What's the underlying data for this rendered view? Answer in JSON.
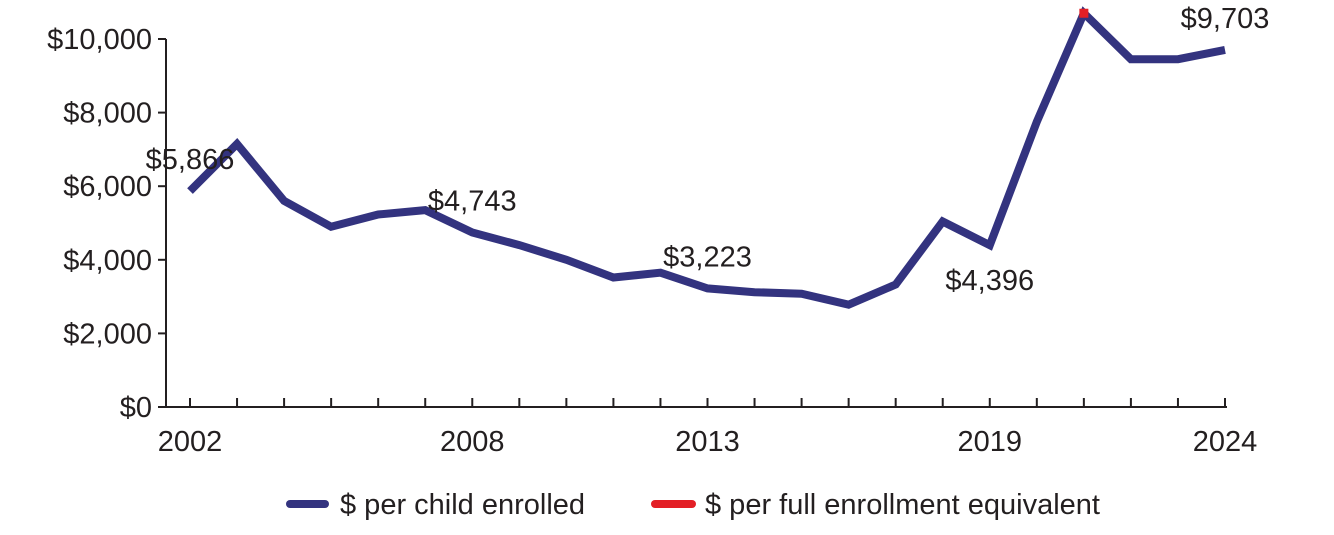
{
  "chart_data": {
    "type": "line",
    "title": "",
    "xlabel": "",
    "ylabel": "",
    "x": [
      2002,
      2003,
      2004,
      2005,
      2006,
      2007,
      2008,
      2009,
      2010,
      2011,
      2012,
      2013,
      2014,
      2015,
      2016,
      2017,
      2018,
      2019,
      2020,
      2021,
      2022,
      2023,
      2024
    ],
    "x_tick_labels": [
      "2002",
      "2008",
      "2013",
      "2019",
      "2024"
    ],
    "xlim": [
      2002,
      2024
    ],
    "ylim": [
      0,
      10000
    ],
    "y_ticks": [
      0,
      2000,
      4000,
      6000,
      8000,
      10000
    ],
    "y_tick_labels": [
      "$0",
      "$2,000",
      "$4,000",
      "$6,000",
      "$8,000",
      "$10,000"
    ],
    "grid": false,
    "legend_position": "bottom",
    "series": [
      {
        "name": "$ per child enrolled",
        "color": "#33337f",
        "values": [
          5866,
          7150,
          5600,
          4900,
          5230,
          5350,
          4743,
          4400,
          4000,
          3520,
          3650,
          3223,
          3120,
          3080,
          2780,
          3330,
          5040,
          4396,
          7750,
          10700,
          9450,
          9450,
          9703
        ]
      },
      {
        "name": "$ per full enrollment equivalent",
        "color": "#e31f26",
        "values": [
          null,
          null,
          null,
          null,
          null,
          null,
          null,
          null,
          null,
          null,
          null,
          null,
          null,
          null,
          null,
          null,
          null,
          null,
          null,
          10700,
          null,
          null,
          null
        ]
      }
    ],
    "annotations": [
      {
        "x": 2002,
        "y": 5866,
        "text": "$5,866",
        "position": "above"
      },
      {
        "x": 2008,
        "y": 4743,
        "text": "$4,743",
        "position": "above"
      },
      {
        "x": 2013,
        "y": 3223,
        "text": "$3,223",
        "position": "above"
      },
      {
        "x": 2019,
        "y": 4396,
        "text": "$4,396",
        "position": "below"
      },
      {
        "x": 2024,
        "y": 9703,
        "text": "$9,703",
        "position": "above"
      }
    ]
  }
}
